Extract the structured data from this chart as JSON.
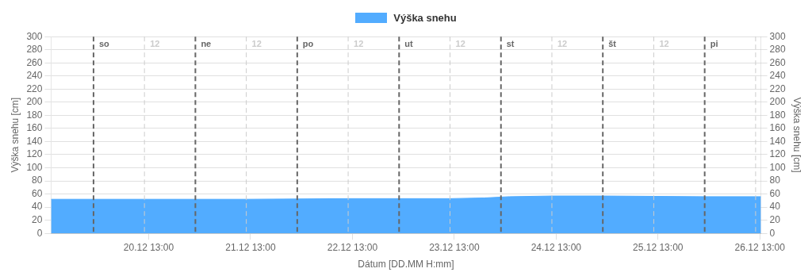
{
  "chart_data": {
    "type": "area",
    "xlabel": "Dátum [DD.MM H:mm]",
    "ylabel": "Výška snehu [cm]",
    "y2label": "Výška snehu [cm]",
    "series": [
      {
        "name": "Výška snehu",
        "color": "#52acff",
        "x": [
          "--12-19T14:00",
          "--12-20T12:00",
          "--12-21T12:00",
          "--12-22T12:00",
          "--12-23T12:00",
          "--12-23T20:00",
          "--12-24T02:00",
          "--12-24T12:00",
          "--12-25T00:00",
          "--12-26T00:00",
          "--12-26T13:15"
        ],
        "values": [
          52,
          52,
          52,
          53,
          53,
          54,
          56,
          57,
          57,
          56,
          56
        ]
      }
    ],
    "xlim": [
      "--12-19T14:00",
      "--12-26T13:15"
    ],
    "xticks": [
      {
        "value": "--12-20T13:00",
        "label": "20.12 13:00"
      },
      {
        "value": "--12-21T13:00",
        "label": "21.12 13:00"
      },
      {
        "value": "--12-22T13:00",
        "label": "22.12 13:00"
      },
      {
        "value": "--12-23T13:00",
        "label": "23.12 13:00"
      },
      {
        "value": "--12-24T13:00",
        "label": "24.12 13:00"
      },
      {
        "value": "--12-25T13:00",
        "label": "25.12 13:00"
      },
      {
        "value": "--12-26T13:00",
        "label": "26.12 13:00"
      }
    ],
    "ylim": [
      0,
      300
    ],
    "yticks": [
      0,
      20,
      40,
      60,
      80,
      100,
      120,
      140,
      160,
      180,
      200,
      220,
      240,
      260,
      280,
      300
    ],
    "y2lim": [
      0,
      300
    ],
    "y2ticks": [
      0,
      20,
      40,
      60,
      80,
      100,
      120,
      140,
      160,
      180,
      200,
      220,
      240,
      260,
      280,
      300
    ],
    "ref_lines": [
      {
        "axis": "x",
        "value": "--12-20T00:00",
        "label": "so",
        "color": "#666666",
        "line_style": "dashed"
      },
      {
        "axis": "x",
        "value": "--12-20T12:00",
        "label": "12",
        "color": "#cccccc",
        "line_style": "dashed"
      },
      {
        "axis": "x",
        "value": "--12-21T00:00",
        "label": "ne",
        "color": "#666666",
        "line_style": "dashed"
      },
      {
        "axis": "x",
        "value": "--12-21T12:00",
        "label": "12",
        "color": "#cccccc",
        "line_style": "dashed"
      },
      {
        "axis": "x",
        "value": "--12-22T00:00",
        "label": "po",
        "color": "#666666",
        "line_style": "dashed"
      },
      {
        "axis": "x",
        "value": "--12-22T12:00",
        "label": "12",
        "color": "#cccccc",
        "line_style": "dashed"
      },
      {
        "axis": "x",
        "value": "--12-23T00:00",
        "label": "ut",
        "color": "#666666",
        "line_style": "dashed"
      },
      {
        "axis": "x",
        "value": "--12-23T12:00",
        "label": "12",
        "color": "#cccccc",
        "line_style": "dashed"
      },
      {
        "axis": "x",
        "value": "--12-24T00:00",
        "label": "st",
        "color": "#666666",
        "line_style": "dashed"
      },
      {
        "axis": "x",
        "value": "--12-24T12:00",
        "label": "12",
        "color": "#cccccc",
        "line_style": "dashed"
      },
      {
        "axis": "x",
        "value": "--12-25T00:00",
        "label": "št",
        "color": "#666666",
        "line_style": "dashed"
      },
      {
        "axis": "x",
        "value": "--12-25T12:00",
        "label": "12",
        "color": "#cccccc",
        "line_style": "dashed"
      },
      {
        "axis": "x",
        "value": "--12-26T00:00",
        "label": "pi",
        "color": "#666666",
        "line_style": "dashed"
      },
      {
        "axis": "x",
        "value": "--12-26T12:00",
        "label": null,
        "color": "#cccccc",
        "line_style": "dashed"
      }
    ],
    "grid": "y",
    "legend": "top",
    "marker": "none",
    "line_style": "solid"
  }
}
